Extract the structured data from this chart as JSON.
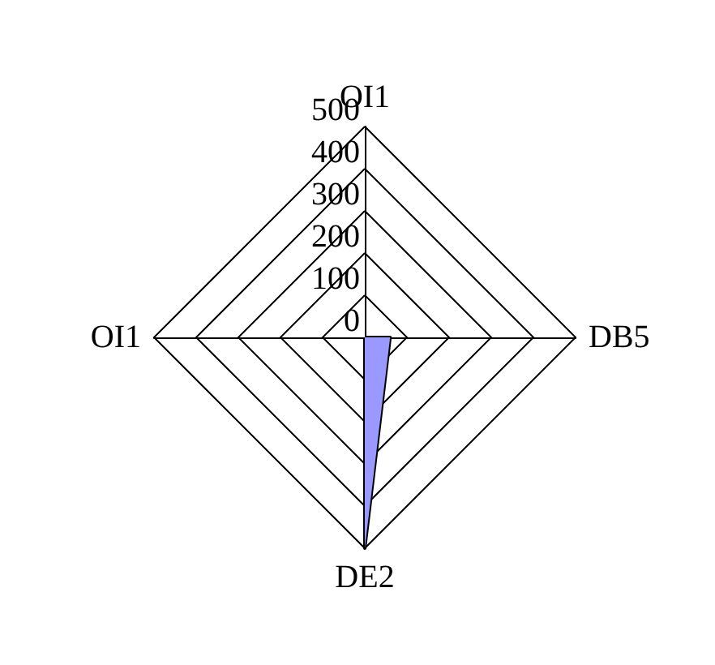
{
  "chart_data": {
    "type": "radar",
    "categories": [
      "OI1",
      "DB5",
      "DE2",
      "OI1"
    ],
    "series": [
      {
        "color": "#9999ff",
        "values": [
          0,
          60,
          500,
          0
        ]
      }
    ],
    "ylim": [
      0,
      500
    ],
    "yticks": [
      0,
      100,
      200,
      300,
      400,
      500
    ]
  }
}
